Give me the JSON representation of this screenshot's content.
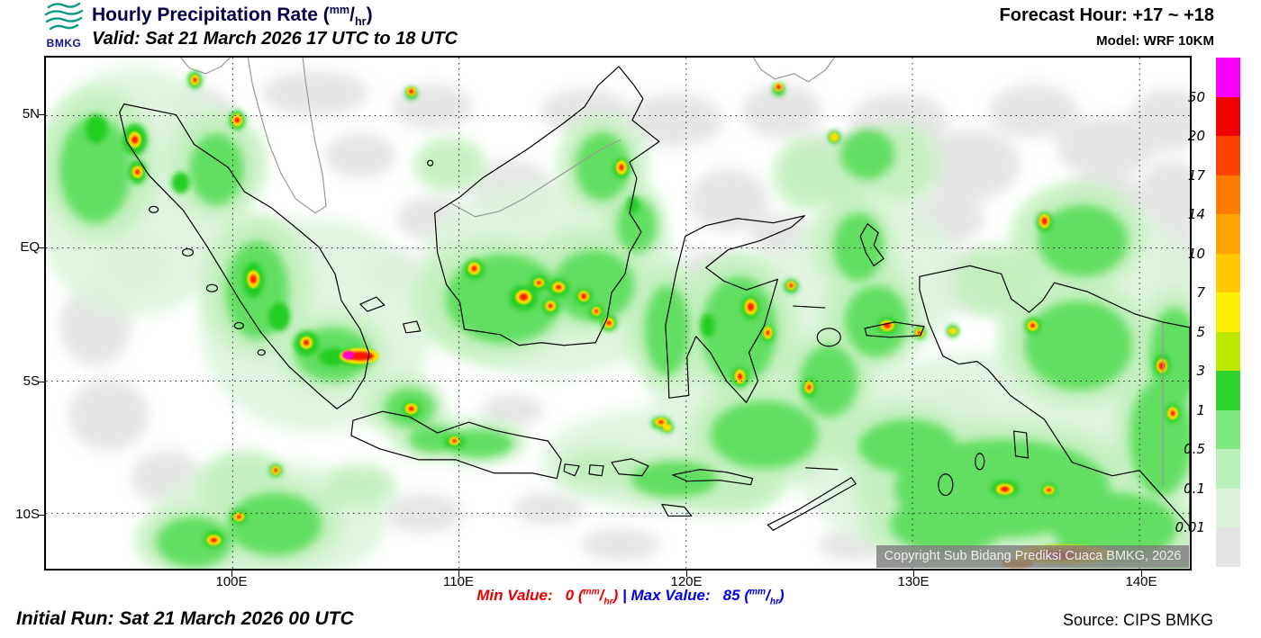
{
  "header": {
    "logo": "BMKG",
    "title": "Hourly Precipitation Rate",
    "valid": "Valid: Sat 21 March 2026 17 UTC to 18 UTC",
    "forecast_hour": "Forecast Hour: +17 ~ +18",
    "model": "Model: WRF 10KM"
  },
  "unit": {
    "num": "mm",
    "den": "hr"
  },
  "axes": {
    "lat": [
      "5N",
      "EQ",
      "5S",
      "10S"
    ],
    "lon": [
      "100E",
      "110E",
      "120E",
      "130E",
      "140E"
    ]
  },
  "map": {
    "copyright": "Copyright Sub Bidang Prediksi Cuaca BMKG, 2026"
  },
  "legend": {
    "values": [
      "50",
      "20",
      "17",
      "14",
      "10",
      "7",
      "5",
      "3",
      "1",
      "0.5",
      "0.1",
      "0.01"
    ],
    "colors": [
      "#f800f8",
      "#ee0000",
      "#ff4000",
      "#ff7c00",
      "#ffa400",
      "#ffc800",
      "#fcf000",
      "#bfe800",
      "#30d330",
      "#7ce87c",
      "#b9efb9",
      "#dcf3dc",
      "#e4e4e4"
    ]
  },
  "footer": {
    "min_label": "Min Value:",
    "min_value": "0",
    "separator": "|",
    "max_label": "Max Value:",
    "max_value": "85",
    "initial_run": "Initial Run: Sat 21 March 2026 00 UTC",
    "source": "Source: CIPS BMKG"
  }
}
